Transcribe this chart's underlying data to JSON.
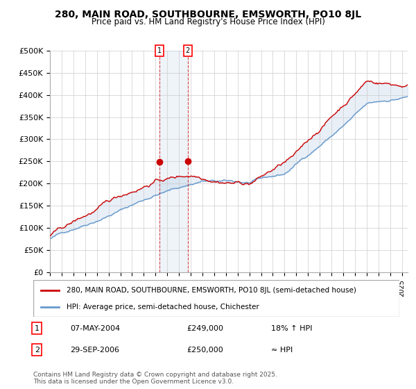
{
  "title": "280, MAIN ROAD, SOUTHBOURNE, EMSWORTH, PO10 8JL",
  "subtitle": "Price paid vs. HM Land Registry's House Price Index (HPI)",
  "ylabel_ticks": [
    "£0",
    "£50K",
    "£100K",
    "£150K",
    "£200K",
    "£250K",
    "£300K",
    "£350K",
    "£400K",
    "£450K",
    "£500K"
  ],
  "ytick_values": [
    0,
    50000,
    100000,
    150000,
    200000,
    250000,
    300000,
    350000,
    400000,
    450000,
    500000
  ],
  "x_start_year": 1995,
  "x_end_year": 2025,
  "sale1_date": 2004.35,
  "sale1_price": 249000,
  "sale2_date": 2006.75,
  "sale2_price": 250000,
  "hpi_color": "#6699cc",
  "price_color": "#cc0000",
  "background_color": "#ffffff",
  "grid_color": "#cccccc",
  "legend_label_price": "280, MAIN ROAD, SOUTHBOURNE, EMSWORTH, PO10 8JL (semi-detached house)",
  "legend_label_hpi": "HPI: Average price, semi-detached house, Chichester",
  "annotation1_label": "1",
  "annotation2_label": "2",
  "annotation1_text": "07-MAY-2004",
  "annotation1_price": "£249,000",
  "annotation1_hpi": "18% ↑ HPI",
  "annotation2_text": "29-SEP-2006",
  "annotation2_price": "£250,000",
  "annotation2_hpi": "≈ HPI",
  "footer": "Contains HM Land Registry data © Crown copyright and database right 2025.\nThis data is licensed under the Open Government Licence v3.0."
}
